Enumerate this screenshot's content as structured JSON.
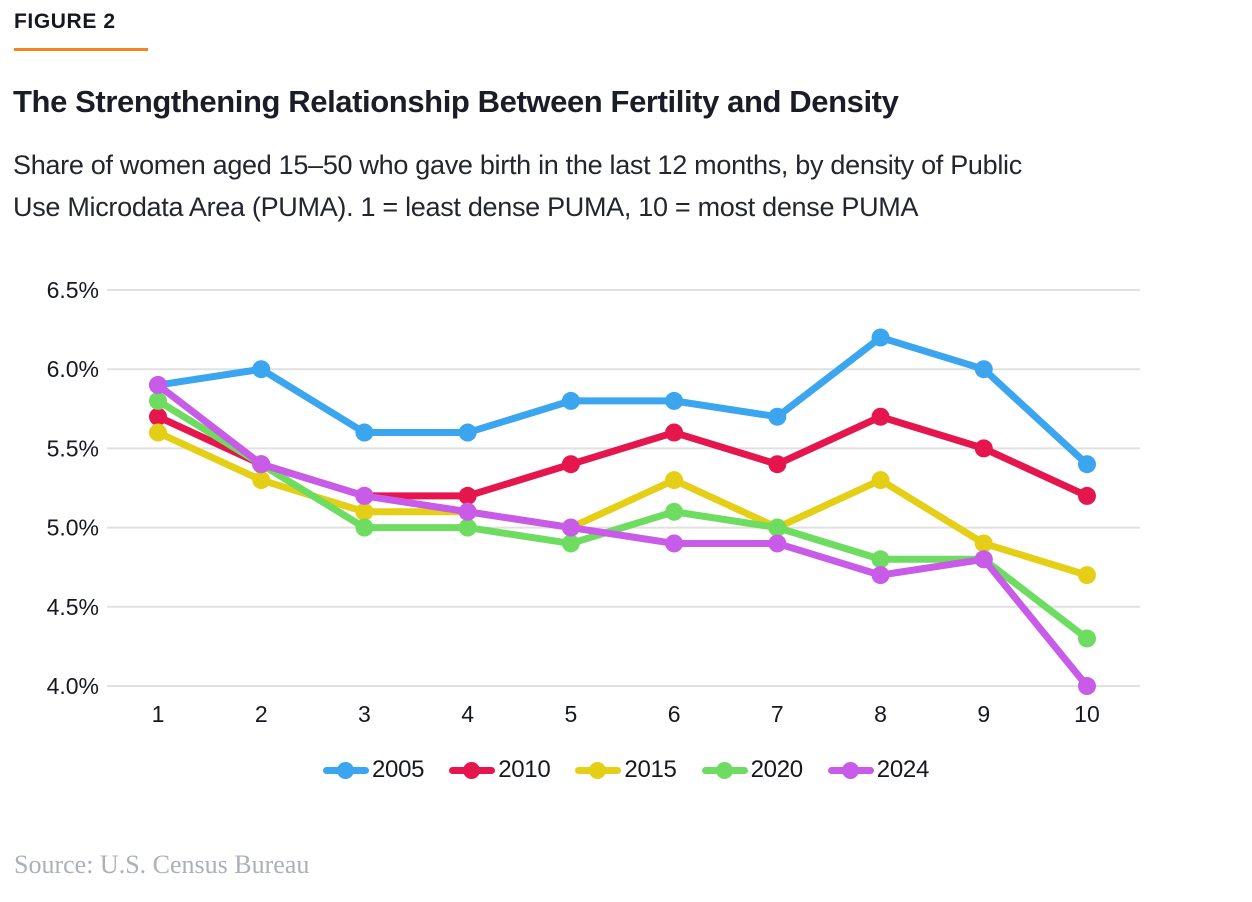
{
  "figure_label": "FIGURE 2",
  "title": "The Strengthening Relationship Between Fertility and Density",
  "subtitle_line1": "Share of women aged 15–50 who gave birth in the last 12 months, by density of Public",
  "subtitle_line2": "Use Microdata Area (PUMA). 1 = least dense PUMA, 10 = most dense PUMA",
  "source": "Source: U.S. Census Bureau",
  "colors": {
    "accent_orange": "#F6831E",
    "gridline": "#E1E1E1",
    "axis_text": "#15181E",
    "source_text": "#ACB0B9"
  },
  "chart_data": {
    "type": "line",
    "title": "The Strengthening Relationship Between Fertility and Density",
    "xlabel": "",
    "ylabel": "",
    "categories": [
      "1",
      "2",
      "3",
      "4",
      "5",
      "6",
      "7",
      "8",
      "9",
      "10"
    ],
    "series": [
      {
        "name": "2005",
        "color": "#3BA5F0",
        "values": [
          5.9,
          6.0,
          5.6,
          5.6,
          5.8,
          5.8,
          5.7,
          6.2,
          6.0,
          5.4
        ]
      },
      {
        "name": "2010",
        "color": "#E5164E",
        "values": [
          5.7,
          5.4,
          5.2,
          5.2,
          5.4,
          5.6,
          5.4,
          5.7,
          5.5,
          5.2
        ]
      },
      {
        "name": "2015",
        "color": "#E5CF16",
        "values": [
          5.6,
          5.3,
          5.1,
          5.1,
          5.0,
          5.3,
          5.0,
          5.3,
          4.9,
          4.7
        ]
      },
      {
        "name": "2020",
        "color": "#6EDC60",
        "values": [
          5.8,
          5.4,
          5.0,
          5.0,
          4.9,
          5.1,
          5.0,
          4.8,
          4.8,
          4.3
        ]
      },
      {
        "name": "2024",
        "color": "#C95BE9",
        "values": [
          5.9,
          5.4,
          5.2,
          5.1,
          5.0,
          4.9,
          4.9,
          4.7,
          4.8,
          4.0
        ]
      }
    ],
    "y_ticks": [
      {
        "label": "6.5%",
        "value": 6.5
      },
      {
        "label": "6.0%",
        "value": 6.0
      },
      {
        "label": "5.5%",
        "value": 5.5
      },
      {
        "label": "5.0%",
        "value": 5.0
      },
      {
        "label": "4.5%",
        "value": 4.5
      },
      {
        "label": "4.0%",
        "value": 4.0
      }
    ],
    "ylim": [
      4.0,
      6.5
    ],
    "grid": true,
    "legend_position": "bottom"
  }
}
